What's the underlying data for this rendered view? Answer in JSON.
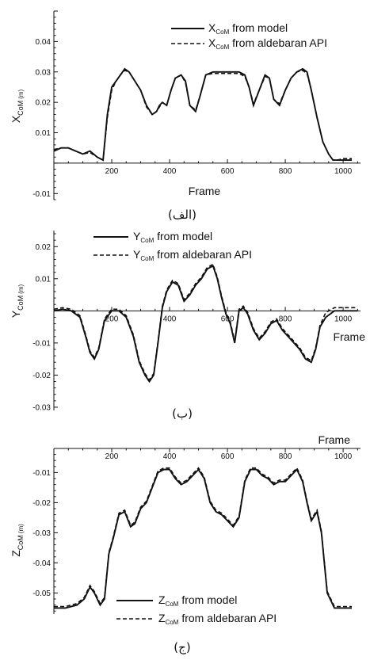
{
  "colors": {
    "ink": "#111111",
    "background": "#ffffff"
  },
  "chart_data": [
    {
      "type": "line",
      "panel_label": "(الف)",
      "xlabel": "Frame",
      "ylabel_main": "X",
      "ylabel_sub": "CoM",
      "ylabel_unit": "(m)",
      "xlim": [
        0,
        1060
      ],
      "ylim": [
        -0.012,
        0.05
      ],
      "xticks": [
        200,
        400,
        600,
        800,
        1000
      ],
      "yticks": [
        -0.01,
        0.01,
        0.02,
        0.03,
        0.04
      ],
      "ytick_labels": [
        "-0.01",
        "0.01",
        "0.02",
        "0.03",
        "0.04"
      ],
      "grid": false,
      "legend_position": "top-right",
      "series": [
        {
          "name_main": "X",
          "name_sub": "CoM",
          "name_rest": " from model",
          "style": "solid",
          "x": [
            0,
            25,
            50,
            75,
            100,
            125,
            150,
            170,
            185,
            200,
            215,
            230,
            245,
            260,
            280,
            300,
            320,
            340,
            355,
            365,
            375,
            390,
            405,
            420,
            440,
            455,
            470,
            490,
            505,
            525,
            550,
            580,
            610,
            640,
            660,
            675,
            690,
            710,
            730,
            745,
            760,
            780,
            800,
            820,
            840,
            860,
            875,
            890,
            910,
            930,
            950,
            965,
            980,
            1000,
            1030
          ],
          "y": [
            0.004,
            0.005,
            0.005,
            0.004,
            0.003,
            0.004,
            0.002,
            0.001,
            0.016,
            0.025,
            0.027,
            0.029,
            0.031,
            0.03,
            0.027,
            0.024,
            0.019,
            0.016,
            0.017,
            0.019,
            0.02,
            0.019,
            0.024,
            0.028,
            0.029,
            0.027,
            0.019,
            0.017,
            0.022,
            0.029,
            0.03,
            0.03,
            0.03,
            0.03,
            0.029,
            0.025,
            0.019,
            0.024,
            0.029,
            0.028,
            0.021,
            0.019,
            0.024,
            0.028,
            0.03,
            0.031,
            0.03,
            0.024,
            0.015,
            0.007,
            0.003,
            0.001,
            0.001,
            0.001,
            0.001
          ]
        },
        {
          "name_main": "X",
          "name_sub": "CoM",
          "name_rest": " from aldebaran API",
          "style": "dashed",
          "x": [
            0,
            25,
            50,
            75,
            100,
            125,
            150,
            170,
            185,
            200,
            215,
            230,
            245,
            260,
            280,
            300,
            320,
            340,
            355,
            365,
            375,
            390,
            405,
            420,
            440,
            455,
            470,
            490,
            505,
            525,
            550,
            580,
            610,
            640,
            660,
            675,
            690,
            710,
            730,
            745,
            760,
            780,
            800,
            820,
            840,
            860,
            875,
            890,
            910,
            930,
            950,
            965,
            980,
            1000,
            1030
          ],
          "y": [
            0.0045,
            0.005,
            0.005,
            0.004,
            0.003,
            0.0035,
            0.002,
            0.001,
            0.015,
            0.024,
            0.027,
            0.029,
            0.0305,
            0.03,
            0.027,
            0.024,
            0.0185,
            0.016,
            0.017,
            0.0185,
            0.02,
            0.019,
            0.024,
            0.028,
            0.029,
            0.0265,
            0.019,
            0.0175,
            0.022,
            0.029,
            0.0295,
            0.0295,
            0.0295,
            0.0295,
            0.0285,
            0.025,
            0.0195,
            0.024,
            0.0285,
            0.028,
            0.021,
            0.0195,
            0.024,
            0.028,
            0.03,
            0.0305,
            0.0295,
            0.024,
            0.015,
            0.007,
            0.003,
            0.001,
            0.001,
            0.0015,
            0.0015
          ]
        }
      ]
    },
    {
      "type": "line",
      "panel_label": "(ب)",
      "xlabel": "Frame",
      "ylabel_main": "Y",
      "ylabel_sub": "CoM",
      "ylabel_unit": "(m)",
      "xlim": [
        0,
        1060
      ],
      "ylim": [
        -0.031,
        0.025
      ],
      "xticks": [
        200,
        400,
        600,
        800,
        1000
      ],
      "yticks": [
        -0.03,
        -0.02,
        -0.01,
        0.01,
        0.02
      ],
      "ytick_labels": [
        "-0.03",
        "-0.02",
        "-0.01",
        "0.01",
        "0.02"
      ],
      "grid": false,
      "legend_position": "top",
      "series": [
        {
          "name_main": "Y",
          "name_sub": "CoM",
          "name_rest": " from model",
          "style": "solid",
          "x": [
            0,
            30,
            60,
            90,
            110,
            125,
            140,
            155,
            175,
            200,
            225,
            250,
            275,
            295,
            315,
            330,
            345,
            360,
            375,
            390,
            410,
            430,
            450,
            470,
            490,
            510,
            530,
            550,
            565,
            580,
            595,
            610,
            625,
            640,
            655,
            670,
            690,
            710,
            730,
            750,
            770,
            790,
            810,
            830,
            850,
            870,
            890,
            905,
            920,
            940,
            970,
            1000,
            1030,
            1050
          ],
          "y": [
            0.0,
            0.0005,
            0.0,
            -0.002,
            -0.008,
            -0.013,
            -0.015,
            -0.012,
            -0.003,
            0.0,
            0.0,
            -0.002,
            -0.008,
            -0.016,
            -0.02,
            -0.022,
            -0.02,
            -0.01,
            0.001,
            0.006,
            0.009,
            0.008,
            0.003,
            0.005,
            0.008,
            0.01,
            0.013,
            0.014,
            0.01,
            0.004,
            -0.001,
            -0.004,
            -0.01,
            0.0,
            0.001,
            -0.001,
            -0.006,
            -0.009,
            -0.007,
            -0.004,
            -0.003,
            -0.006,
            -0.008,
            -0.01,
            -0.012,
            -0.015,
            -0.016,
            -0.012,
            -0.005,
            -0.002,
            0.0,
            0.0,
            0.0,
            0.0
          ]
        },
        {
          "name_main": "Y",
          "name_sub": "CoM",
          "name_rest": " from aldebaran API",
          "style": "dashed",
          "x": [
            0,
            30,
            60,
            90,
            110,
            125,
            140,
            155,
            175,
            200,
            225,
            250,
            275,
            295,
            315,
            330,
            345,
            360,
            375,
            390,
            410,
            430,
            450,
            470,
            490,
            510,
            530,
            550,
            565,
            580,
            595,
            610,
            625,
            640,
            655,
            670,
            690,
            710,
            730,
            750,
            770,
            790,
            810,
            830,
            850,
            870,
            890,
            905,
            920,
            940,
            970,
            1000,
            1030,
            1050
          ],
          "y": [
            0.0005,
            0.001,
            0.0005,
            -0.0015,
            -0.0075,
            -0.0125,
            -0.0145,
            -0.0115,
            -0.0025,
            0.0005,
            0.0005,
            -0.0015,
            -0.0075,
            -0.0155,
            -0.0195,
            -0.0215,
            -0.0195,
            -0.0095,
            0.0015,
            0.0065,
            0.0095,
            0.0085,
            0.0035,
            0.0055,
            0.0085,
            0.0105,
            0.0135,
            0.0145,
            0.0105,
            0.0045,
            -0.0005,
            -0.0035,
            -0.0095,
            0.0005,
            0.0015,
            -0.0005,
            -0.0055,
            -0.0085,
            -0.0065,
            -0.0035,
            -0.0025,
            -0.0055,
            -0.0075,
            -0.0095,
            -0.0115,
            -0.0145,
            -0.0155,
            -0.0115,
            -0.0045,
            -0.0005,
            0.001,
            0.001,
            0.001,
            0.001
          ]
        }
      ]
    },
    {
      "type": "line",
      "panel_label": "(ج)",
      "xlabel": "Frame",
      "ylabel_main": "Z",
      "ylabel_sub": "CoM",
      "ylabel_unit": "(m)",
      "xlim": [
        0,
        1060
      ],
      "ylim": [
        -0.057,
        -0.002
      ],
      "xticks": [
        200,
        400,
        600,
        800,
        1000
      ],
      "yticks": [
        -0.05,
        -0.04,
        -0.03,
        -0.02,
        -0.01
      ],
      "ytick_labels": [
        "-0.05",
        "-0.04",
        "-0.03",
        "-0.02",
        "-0.01"
      ],
      "grid": false,
      "legend_position": "bottom",
      "series": [
        {
          "name_main": "Z",
          "name_sub": "CoM",
          "name_rest": " from model",
          "style": "solid",
          "x": [
            0,
            40,
            80,
            105,
            125,
            140,
            160,
            175,
            190,
            205,
            225,
            245,
            265,
            280,
            300,
            320,
            340,
            360,
            380,
            400,
            420,
            440,
            460,
            480,
            500,
            520,
            540,
            560,
            580,
            600,
            620,
            640,
            660,
            680,
            700,
            720,
            740,
            760,
            780,
            800,
            820,
            840,
            860,
            875,
            890,
            910,
            925,
            945,
            970,
            1000,
            1030
          ],
          "y": [
            -0.055,
            -0.055,
            -0.054,
            -0.052,
            -0.048,
            -0.05,
            -0.054,
            -0.052,
            -0.037,
            -0.032,
            -0.024,
            -0.023,
            -0.028,
            -0.027,
            -0.022,
            -0.02,
            -0.015,
            -0.01,
            -0.009,
            -0.009,
            -0.012,
            -0.014,
            -0.013,
            -0.011,
            -0.009,
            -0.012,
            -0.02,
            -0.023,
            -0.024,
            -0.026,
            -0.028,
            -0.025,
            -0.013,
            -0.009,
            -0.009,
            -0.011,
            -0.012,
            -0.014,
            -0.013,
            -0.013,
            -0.011,
            -0.009,
            -0.013,
            -0.02,
            -0.026,
            -0.023,
            -0.03,
            -0.05,
            -0.055,
            -0.055,
            -0.055
          ]
        },
        {
          "name_main": "Z",
          "name_sub": "CoM",
          "name_rest": " from aldebaran API",
          "style": "dashed",
          "x": [
            0,
            40,
            80,
            105,
            125,
            140,
            160,
            175,
            190,
            205,
            225,
            245,
            265,
            280,
            300,
            320,
            340,
            360,
            380,
            400,
            420,
            440,
            460,
            480,
            500,
            520,
            540,
            560,
            580,
            600,
            620,
            640,
            660,
            680,
            700,
            720,
            740,
            760,
            780,
            800,
            820,
            840,
            860,
            875,
            890,
            910,
            925,
            945,
            970,
            1000,
            1030
          ],
          "y": [
            -0.0545,
            -0.0545,
            -0.0535,
            -0.0515,
            -0.0475,
            -0.0495,
            -0.0535,
            -0.0515,
            -0.0365,
            -0.0315,
            -0.0235,
            -0.0225,
            -0.0275,
            -0.0265,
            -0.0215,
            -0.0195,
            -0.0145,
            -0.0095,
            -0.0085,
            -0.0085,
            -0.0115,
            -0.0135,
            -0.0125,
            -0.0105,
            -0.0085,
            -0.0115,
            -0.0195,
            -0.0225,
            -0.0235,
            -0.0255,
            -0.0275,
            -0.0245,
            -0.0125,
            -0.0085,
            -0.0085,
            -0.0105,
            -0.0115,
            -0.0135,
            -0.0125,
            -0.0125,
            -0.0105,
            -0.0085,
            -0.0125,
            -0.0195,
            -0.0255,
            -0.0225,
            -0.0295,
            -0.0495,
            -0.0545,
            -0.0545,
            -0.0545
          ]
        }
      ]
    }
  ]
}
